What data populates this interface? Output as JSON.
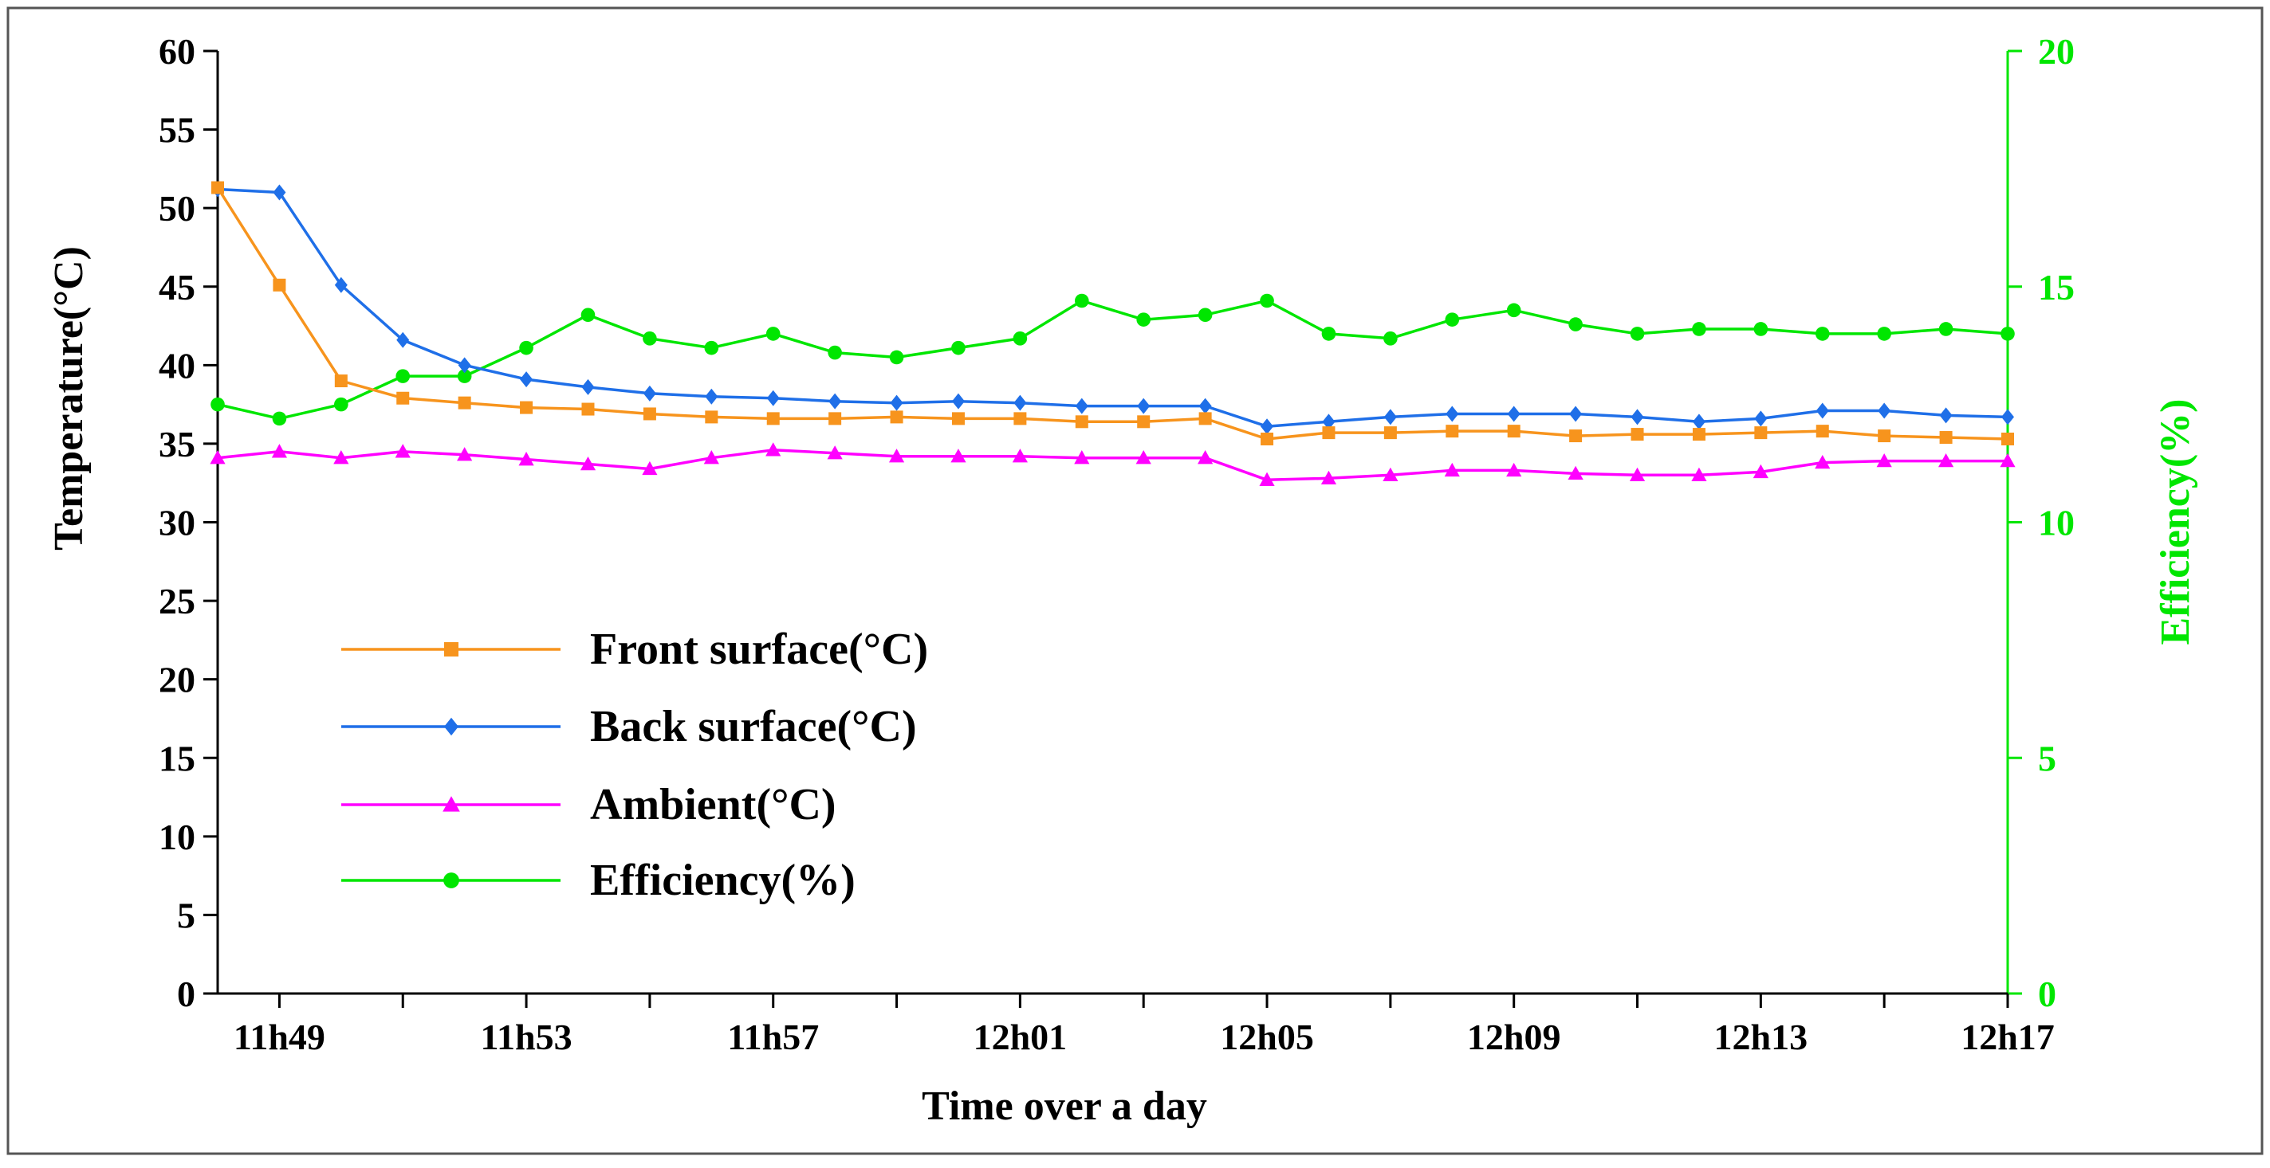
{
  "chart_data": {
    "type": "line",
    "title": "",
    "xlabel": "Time over a day",
    "ylabel": "Temperature(°C)",
    "y2label": "Efficiency(%)",
    "ylim": [
      0,
      60
    ],
    "y2lim": [
      0,
      20
    ],
    "yticks": [
      "0",
      "5",
      "10",
      "15",
      "20",
      "25",
      "30",
      "35",
      "40",
      "45",
      "50",
      "55",
      "60"
    ],
    "y2ticks": [
      "0",
      "5",
      "10",
      "15",
      "20"
    ],
    "x_tick_labels": [
      "11h49",
      "11h53",
      "11h57",
      "12h01",
      "12h05",
      "12h09",
      "12h13",
      "12h17"
    ],
    "x": [
      "11h48",
      "11h49",
      "11h50",
      "11h51",
      "11h52",
      "11h53",
      "11h54",
      "11h55",
      "11h56",
      "11h57",
      "11h58",
      "11h59",
      "12h00",
      "12h01",
      "12h02",
      "12h03",
      "12h04",
      "12h05",
      "12h06",
      "12h07",
      "12h08",
      "12h09",
      "12h10",
      "12h11",
      "12h12",
      "12h13",
      "12h14",
      "12h15",
      "12h16",
      "12h17"
    ],
    "legend_position": "middle-left",
    "grid": false,
    "series": [
      {
        "name": "Front surface(°C)",
        "axis": "left",
        "color": "#f7941d",
        "marker": "square",
        "values": [
          51.3,
          45.1,
          39.0,
          37.9,
          37.6,
          37.3,
          37.2,
          36.9,
          36.7,
          36.6,
          36.6,
          36.7,
          36.6,
          36.6,
          36.4,
          36.4,
          36.6,
          35.3,
          35.7,
          35.7,
          35.8,
          35.8,
          35.5,
          35.6,
          35.6,
          35.7,
          35.8,
          35.5,
          35.4,
          35.3
        ]
      },
      {
        "name": "Back surface(°C)",
        "axis": "left",
        "color": "#1f6fe8",
        "marker": "diamond",
        "values": [
          51.2,
          51.0,
          45.1,
          41.6,
          40.0,
          39.1,
          38.6,
          38.2,
          38.0,
          37.9,
          37.7,
          37.6,
          37.7,
          37.6,
          37.4,
          37.4,
          37.4,
          36.1,
          36.4,
          36.7,
          36.9,
          36.9,
          36.9,
          36.7,
          36.4,
          36.6,
          37.1,
          37.1,
          36.8,
          36.7
        ]
      },
      {
        "name": "Ambient(°C)",
        "axis": "left",
        "color": "#ff00ff",
        "marker": "triangle",
        "values": [
          34.1,
          34.5,
          34.1,
          34.5,
          34.3,
          34.0,
          33.7,
          33.4,
          34.1,
          34.6,
          34.4,
          34.2,
          34.2,
          34.2,
          34.1,
          34.1,
          34.1,
          32.7,
          32.8,
          33.0,
          33.3,
          33.3,
          33.1,
          33.0,
          33.0,
          33.2,
          33.8,
          33.9,
          33.9,
          33.9
        ]
      },
      {
        "name": "Efficiency(%)",
        "axis": "right",
        "color": "#00e600",
        "marker": "circle",
        "values": [
          12.5,
          12.2,
          12.5,
          13.1,
          13.1,
          13.7,
          14.4,
          13.9,
          13.7,
          14.0,
          13.6,
          13.5,
          13.7,
          13.9,
          14.7,
          14.3,
          14.4,
          14.7,
          14.0,
          13.9,
          14.3,
          14.5,
          14.2,
          14.0,
          14.1,
          14.1,
          14.0,
          14.0,
          14.1,
          14.0
        ]
      }
    ]
  }
}
